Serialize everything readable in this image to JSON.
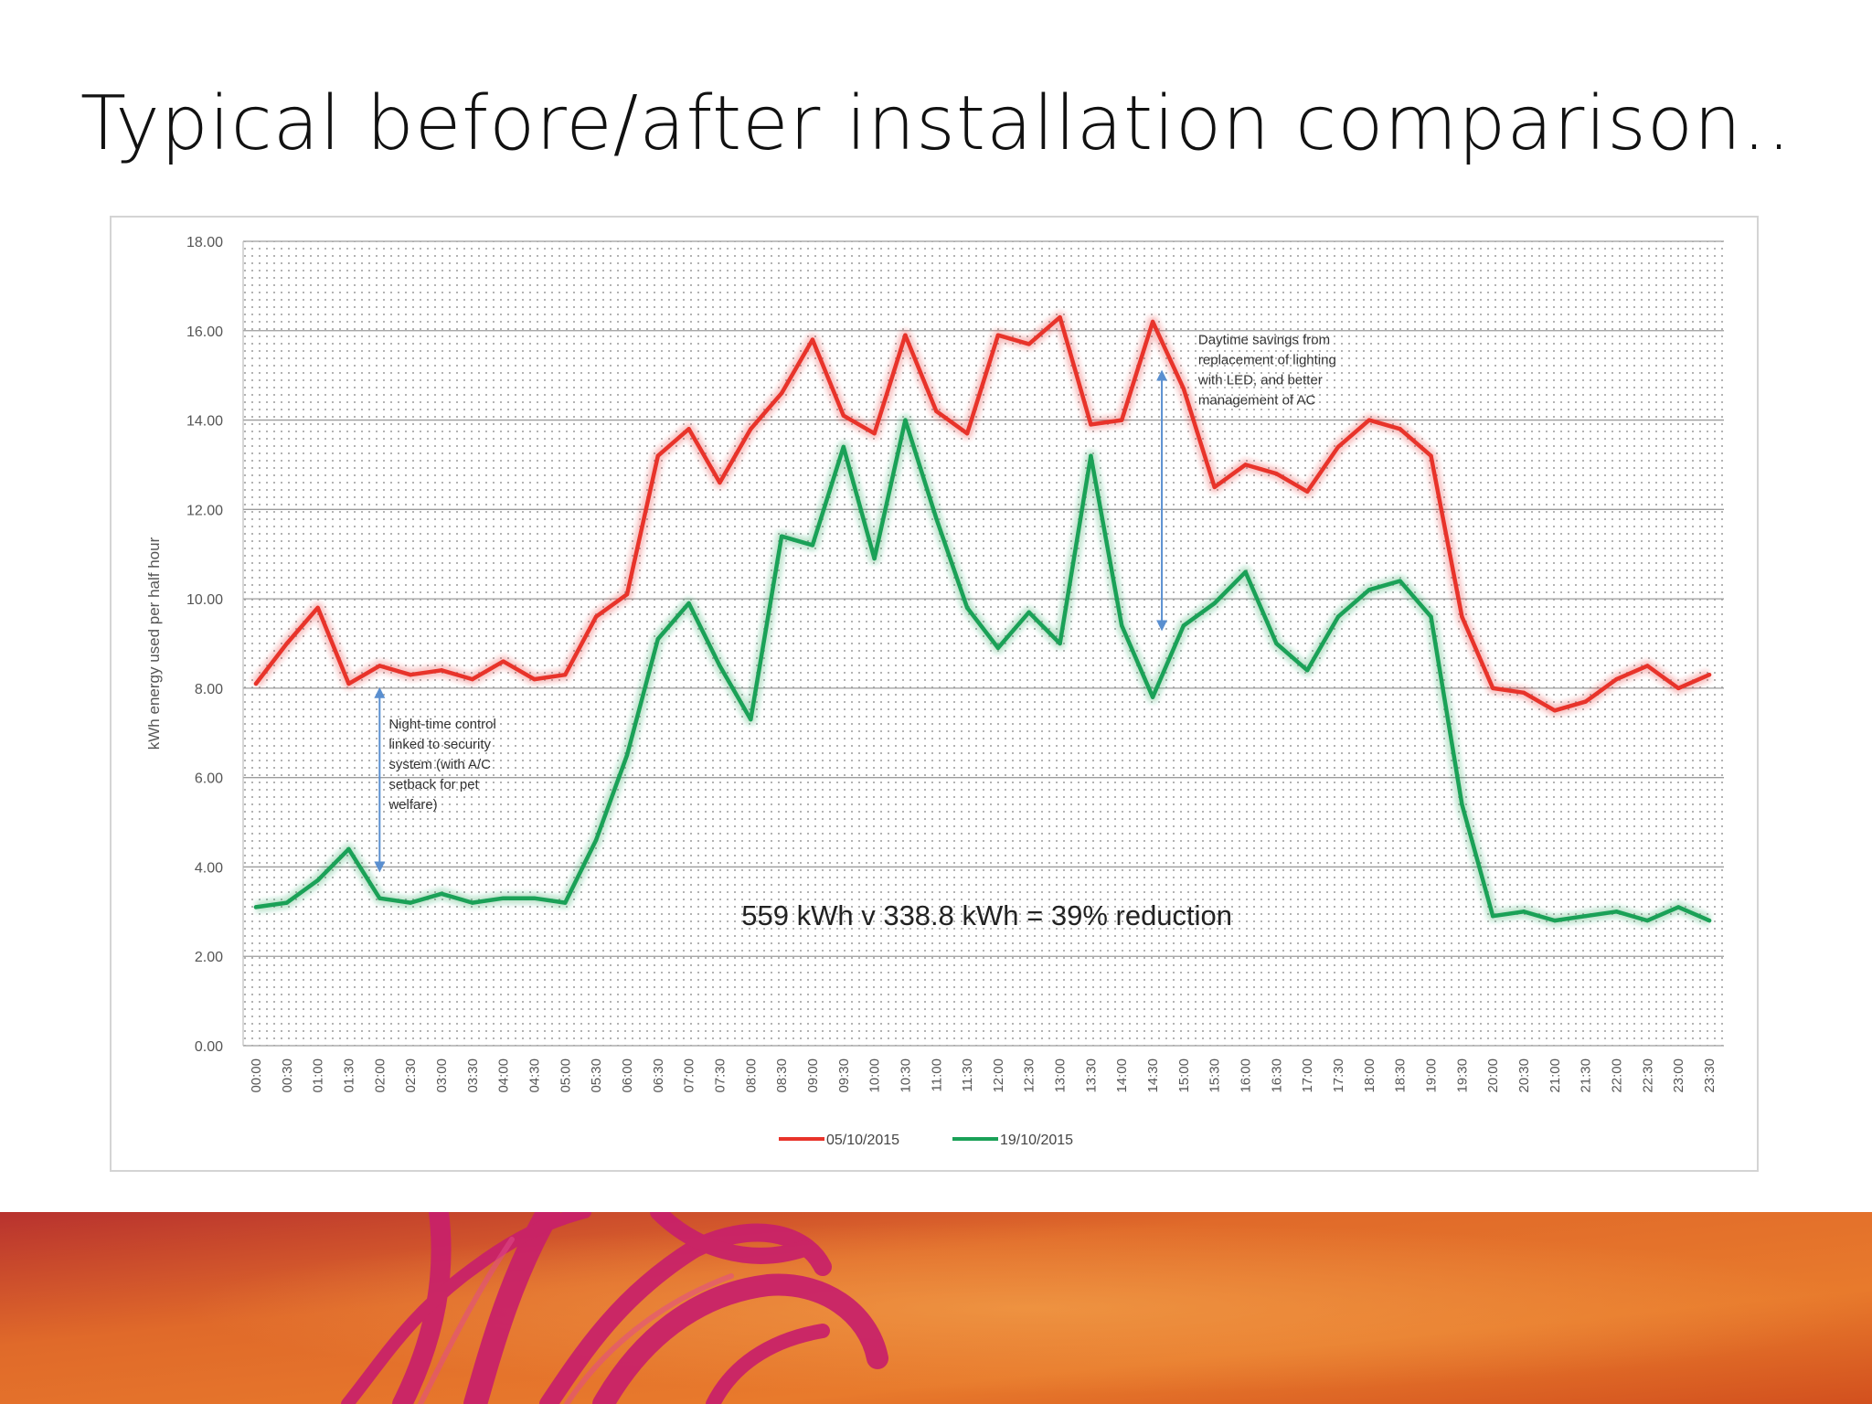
{
  "slide": {
    "title": "Typical before/after installation comparison.."
  },
  "colors": {
    "before": "#e8332a",
    "after": "#1aa157",
    "annotation_arrow": "#5a8fd0",
    "footer_base": "#d8541e",
    "footer_accent": "#c0205a"
  },
  "chart_data": {
    "type": "line",
    "ylabel": "kWh energy used per half hour",
    "xlabel": "",
    "ylim": [
      0,
      18
    ],
    "yticks": [
      "0.00",
      "2.00",
      "4.00",
      "6.00",
      "8.00",
      "10.00",
      "12.00",
      "14.00",
      "16.00",
      "18.00"
    ],
    "grid": true,
    "legend_position": "bottom",
    "categories": [
      "00:00",
      "00:30",
      "01:00",
      "01:30",
      "02:00",
      "02:30",
      "03:00",
      "03:30",
      "04:00",
      "04:30",
      "05:00",
      "05:30",
      "06:00",
      "06:30",
      "07:00",
      "07:30",
      "08:00",
      "08:30",
      "09:00",
      "09:30",
      "10:00",
      "10:30",
      "11:00",
      "11:30",
      "12:00",
      "12:30",
      "13:00",
      "13:30",
      "14:00",
      "14:30",
      "15:00",
      "15:30",
      "16:00",
      "16:30",
      "17:00",
      "17:30",
      "18:00",
      "18:30",
      "19:00",
      "19:30",
      "20:00",
      "20:30",
      "21:00",
      "21:30",
      "22:00",
      "22:30",
      "23:00",
      "23:30"
    ],
    "series": [
      {
        "name": "05/10/2015",
        "color": "#e8332a",
        "values": [
          8.1,
          9.0,
          9.8,
          8.1,
          8.5,
          8.3,
          8.4,
          8.2,
          8.6,
          8.2,
          8.3,
          9.6,
          10.1,
          13.2,
          13.8,
          12.6,
          13.8,
          14.6,
          15.8,
          14.1,
          13.7,
          15.9,
          14.2,
          13.7,
          15.9,
          15.7,
          16.3,
          13.9,
          14.0,
          16.2,
          14.7,
          12.5,
          13.0,
          12.8,
          12.4,
          13.4,
          14.0,
          13.8,
          13.2,
          9.6,
          8.0,
          7.9,
          7.5,
          7.7,
          8.2,
          8.5,
          8.0,
          8.3
        ]
      },
      {
        "name": "19/10/2015",
        "color": "#1aa157",
        "values": [
          3.1,
          3.2,
          3.7,
          4.4,
          3.3,
          3.2,
          3.4,
          3.2,
          3.3,
          3.3,
          3.2,
          4.6,
          6.5,
          9.1,
          9.9,
          8.5,
          7.3,
          11.4,
          11.2,
          13.4,
          10.9,
          14.0,
          11.8,
          9.8,
          8.9,
          9.7,
          9.0,
          13.2,
          9.4,
          7.8,
          9.4,
          9.9,
          10.6,
          9.0,
          8.4,
          9.6,
          10.2,
          10.4,
          9.6,
          5.4,
          2.9,
          3.0,
          2.8,
          2.9,
          3.0,
          2.8,
          3.1,
          2.8
        ]
      }
    ],
    "annotations": {
      "daytime": "Daytime savings from replacement of lighting with LED, and better management of AC",
      "daytime_lines": [
        "Daytime savings from",
        "replacement of lighting",
        "with LED, and better",
        "management of AC"
      ],
      "nighttime": "Night-time control linked to security system (with A/C setback for pet welfare)",
      "nighttime_lines": [
        "Night-time control",
        "linked to security",
        "system (with A/C",
        "setback for pet",
        "welfare)"
      ],
      "summary": "559 kWh v 338.8 kWh = 39% reduction"
    }
  }
}
